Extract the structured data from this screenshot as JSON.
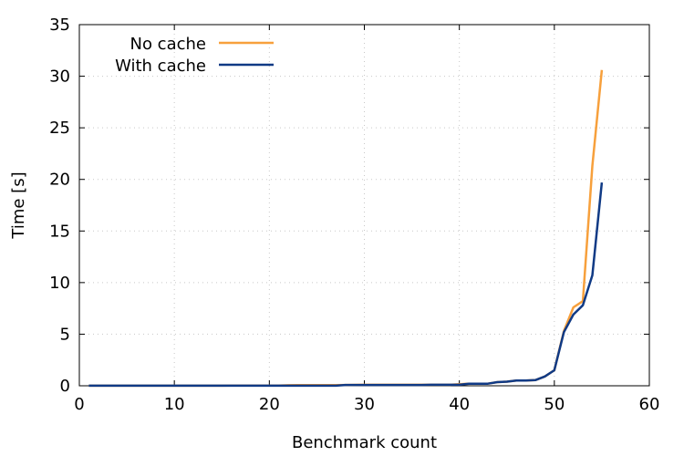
{
  "chart_data": {
    "type": "line",
    "title": "",
    "xlabel": "Benchmark count",
    "ylabel": "Time [s]",
    "xlim": [
      0,
      60
    ],
    "ylim": [
      0,
      35
    ],
    "xticks": [
      0,
      10,
      20,
      30,
      40,
      50,
      60
    ],
    "yticks": [
      0,
      5,
      10,
      15,
      20,
      25,
      30,
      35
    ],
    "grid": true,
    "legend": "top-left",
    "series": [
      {
        "name": "No cache",
        "color": "#f7a03c",
        "x": [
          1,
          2,
          3,
          4,
          5,
          6,
          7,
          8,
          9,
          10,
          11,
          12,
          13,
          14,
          15,
          16,
          17,
          18,
          19,
          20,
          21,
          22,
          23,
          24,
          25,
          26,
          27,
          28,
          29,
          30,
          31,
          32,
          33,
          34,
          35,
          36,
          37,
          38,
          39,
          40,
          41,
          42,
          43,
          44,
          45,
          46,
          47,
          48,
          49,
          50,
          51,
          52,
          53,
          54,
          55
        ],
        "values": [
          0.01,
          0.01,
          0.01,
          0.01,
          0.01,
          0.01,
          0.01,
          0.01,
          0.01,
          0.01,
          0.01,
          0.01,
          0.01,
          0.01,
          0.01,
          0.02,
          0.02,
          0.02,
          0.02,
          0.03,
          0.03,
          0.05,
          0.06,
          0.06,
          0.06,
          0.06,
          0.06,
          0.08,
          0.09,
          0.1,
          0.1,
          0.1,
          0.1,
          0.1,
          0.1,
          0.1,
          0.1,
          0.1,
          0.1,
          0.15,
          0.2,
          0.2,
          0.2,
          0.35,
          0.4,
          0.5,
          0.5,
          0.55,
          0.9,
          1.5,
          5.3,
          7.6,
          8.2,
          21.3,
          30.6
        ]
      },
      {
        "name": "With cache",
        "color": "#103a85",
        "x": [
          1,
          2,
          3,
          4,
          5,
          6,
          7,
          8,
          9,
          10,
          11,
          12,
          13,
          14,
          15,
          16,
          17,
          18,
          19,
          20,
          21,
          22,
          23,
          24,
          25,
          26,
          27,
          28,
          29,
          30,
          31,
          32,
          33,
          34,
          35,
          36,
          37,
          38,
          39,
          40,
          41,
          42,
          43,
          44,
          45,
          46,
          47,
          48,
          49,
          50,
          51,
          52,
          53,
          54,
          55
        ],
        "values": [
          0.01,
          0.01,
          0.01,
          0.01,
          0.01,
          0.01,
          0.01,
          0.01,
          0.01,
          0.01,
          0.01,
          0.01,
          0.01,
          0.01,
          0.01,
          0.01,
          0.01,
          0.01,
          0.01,
          0.01,
          0.01,
          0.01,
          0.01,
          0.01,
          0.01,
          0.01,
          0.01,
          0.08,
          0.08,
          0.08,
          0.08,
          0.08,
          0.08,
          0.08,
          0.08,
          0.08,
          0.1,
          0.1,
          0.1,
          0.1,
          0.2,
          0.2,
          0.2,
          0.35,
          0.4,
          0.5,
          0.5,
          0.55,
          0.9,
          1.5,
          5.2,
          6.9,
          7.8,
          10.7,
          19.7
        ]
      }
    ]
  }
}
